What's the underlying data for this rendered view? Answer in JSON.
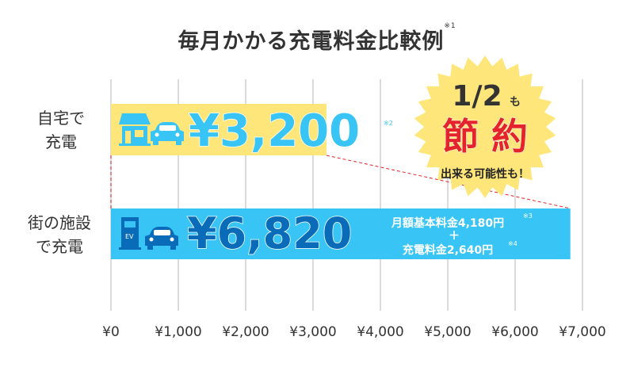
{
  "chart_data": {
    "type": "bar",
    "orientation": "horizontal",
    "title": "毎月かかる充電料金比較例",
    "title_note": "※1",
    "categories": [
      "自宅で充電",
      "街の施設で充電"
    ],
    "category_lines": [
      [
        "自宅で",
        "充電"
      ],
      [
        "街の施設",
        "で充電"
      ]
    ],
    "values": [
      3200,
      6820
    ],
    "value_labels": [
      "¥3,200",
      "¥6,820"
    ],
    "value_notes": [
      "※2",
      ""
    ],
    "xlim": [
      0,
      7000
    ],
    "xticks": [
      0,
      1000,
      2000,
      3000,
      4000,
      5000,
      6000,
      7000
    ],
    "xtick_labels": [
      "¥0",
      "¥1,000",
      "¥2,000",
      "¥3,000",
      "¥4,000",
      "¥5,000",
      "¥6,000",
      "¥7,000"
    ],
    "grid": true,
    "colors": {
      "home": "#FFE67A",
      "public": "#38C4F4",
      "home_text": "#38C4F4",
      "public_text": "#0A6CB8",
      "accent_red": "#E5232A",
      "burst": "#FFE67A"
    },
    "breakdown": {
      "line1": "月額基本料金4,180円",
      "note1": "※3",
      "plus": "＋",
      "line2": "充電料金2,640円",
      "note2": "※4"
    },
    "callout": {
      "ratio": "1/2",
      "ratio_suffix": "も",
      "main": "節 約",
      "sub": "出来る可能性も！"
    },
    "icons": [
      "solar-house-icon",
      "car-icon",
      "ev-charger-icon",
      "car-icon"
    ]
  }
}
